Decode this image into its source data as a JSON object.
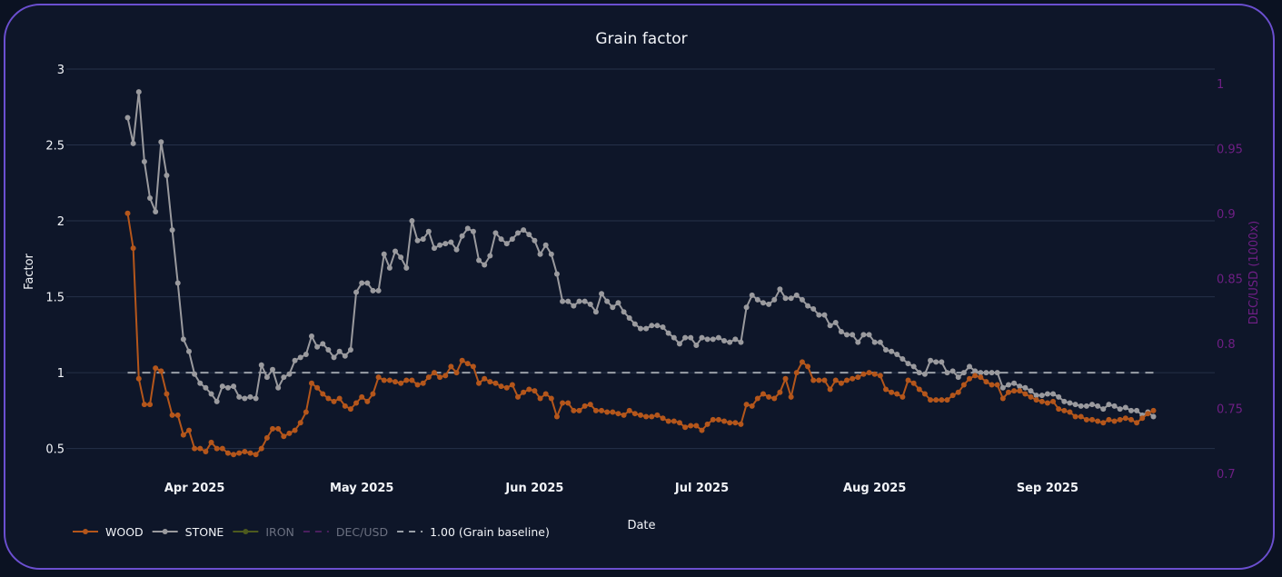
{
  "chart_data": {
    "type": "line",
    "title": "Grain factor",
    "xlabel": "Date",
    "ylabel": "Factor",
    "y2label": "DEC/USD (1000x)",
    "start_date": "2025-03-20",
    "interval": "daily",
    "xlim": [
      "2025-03-09",
      "2025-10-01"
    ],
    "ylim": [
      0.336,
      3.084
    ],
    "y2lim": [
      0.7,
      1.021
    ],
    "yticks": [
      0.5,
      1,
      1.5,
      2,
      2.5,
      3
    ],
    "ytick_labels": [
      "0.5",
      "1",
      "1.5",
      "2",
      "2.5",
      "3"
    ],
    "y2ticks": [
      0.7,
      0.75,
      0.8,
      0.85,
      0.9,
      0.95,
      1
    ],
    "y2tick_labels": [
      "0.7",
      "0.75",
      "0.8",
      "0.85",
      "0.9",
      "0.95",
      "1"
    ],
    "xticks": [
      "2025-04-01",
      "2025-05-01",
      "2025-06-01",
      "2025-07-01",
      "2025-08-01",
      "2025-09-01"
    ],
    "xtick_labels": [
      "Apr 2025",
      "May 2025",
      "Jun 2025",
      "Jul 2025",
      "Aug 2025",
      "Sep 2025"
    ],
    "grid": true,
    "legend_position": "bottom-left",
    "baseline": {
      "name": "1.00 (Grain baseline)",
      "value": 1.0,
      "color": "#9aa0a8"
    },
    "series": [
      {
        "name": "WOOD",
        "color": "#b4561b",
        "visible": true,
        "values": [
          2.05,
          1.82,
          0.96,
          0.79,
          0.79,
          1.03,
          1.01,
          0.86,
          0.72,
          0.72,
          0.59,
          0.62,
          0.5,
          0.5,
          0.48,
          0.54,
          0.5,
          0.5,
          0.47,
          0.46,
          0.47,
          0.48,
          0.47,
          0.46,
          0.5,
          0.57,
          0.63,
          0.63,
          0.58,
          0.6,
          0.62,
          0.67,
          0.74,
          0.93,
          0.9,
          0.86,
          0.83,
          0.81,
          0.83,
          0.78,
          0.76,
          0.8,
          0.84,
          0.81,
          0.86,
          0.97,
          0.95,
          0.95,
          0.94,
          0.93,
          0.95,
          0.95,
          0.92,
          0.93,
          0.97,
          1.0,
          0.97,
          0.98,
          1.04,
          1.0,
          1.08,
          1.06,
          1.04,
          0.93,
          0.96,
          0.94,
          0.93,
          0.91,
          0.9,
          0.92,
          0.84,
          0.87,
          0.89,
          0.88,
          0.83,
          0.86,
          0.83,
          0.71,
          0.8,
          0.8,
          0.75,
          0.75,
          0.78,
          0.79,
          0.75,
          0.75,
          0.74,
          0.74,
          0.73,
          0.72,
          0.75,
          0.73,
          0.72,
          0.71,
          0.71,
          0.72,
          0.7,
          0.68,
          0.68,
          0.67,
          0.64,
          0.65,
          0.65,
          0.62,
          0.66,
          0.69,
          0.69,
          0.68,
          0.67,
          0.67,
          0.66,
          0.79,
          0.78,
          0.83,
          0.86,
          0.84,
          0.83,
          0.87,
          0.96,
          0.84,
          1.0,
          1.07,
          1.04,
          0.95,
          0.95,
          0.95,
          0.89,
          0.95,
          0.93,
          0.95,
          0.96,
          0.97,
          0.99,
          1.0,
          0.99,
          0.98,
          0.89,
          0.87,
          0.86,
          0.84,
          0.95,
          0.93,
          0.89,
          0.86,
          0.82,
          0.82,
          0.82,
          0.82,
          0.85,
          0.87,
          0.92,
          0.96,
          0.98,
          0.97,
          0.94,
          0.92,
          0.92,
          0.83,
          0.87,
          0.88,
          0.88,
          0.86,
          0.84,
          0.82,
          0.81,
          0.8,
          0.81,
          0.76,
          0.75,
          0.74,
          0.71,
          0.71,
          0.69,
          0.69,
          0.68,
          0.67,
          0.69,
          0.68,
          0.69,
          0.7,
          0.69,
          0.67,
          0.7,
          0.73,
          0.75
        ]
      },
      {
        "name": "STONE",
        "color": "#9a9a9e",
        "visible": true,
        "values": [
          2.68,
          2.51,
          2.85,
          2.39,
          2.15,
          2.06,
          2.52,
          2.3,
          1.94,
          1.59,
          1.22,
          1.14,
          0.99,
          0.93,
          0.9,
          0.86,
          0.81,
          0.91,
          0.9,
          0.91,
          0.84,
          0.83,
          0.84,
          0.83,
          1.05,
          0.97,
          1.02,
          0.9,
          0.97,
          0.99,
          1.08,
          1.1,
          1.12,
          1.24,
          1.17,
          1.19,
          1.15,
          1.1,
          1.14,
          1.11,
          1.15,
          1.53,
          1.59,
          1.59,
          1.54,
          1.54,
          1.78,
          1.69,
          1.8,
          1.76,
          1.69,
          2.0,
          1.87,
          1.88,
          1.93,
          1.82,
          1.84,
          1.85,
          1.86,
          1.81,
          1.9,
          1.95,
          1.93,
          1.74,
          1.71,
          1.77,
          1.92,
          1.88,
          1.85,
          1.88,
          1.92,
          1.94,
          1.91,
          1.87,
          1.78,
          1.84,
          1.78,
          1.65,
          1.47,
          1.47,
          1.44,
          1.47,
          1.47,
          1.45,
          1.4,
          1.52,
          1.47,
          1.43,
          1.46,
          1.4,
          1.36,
          1.32,
          1.29,
          1.29,
          1.31,
          1.31,
          1.3,
          1.26,
          1.23,
          1.19,
          1.23,
          1.23,
          1.18,
          1.23,
          1.22,
          1.22,
          1.23,
          1.21,
          1.2,
          1.22,
          1.2,
          1.43,
          1.51,
          1.48,
          1.46,
          1.45,
          1.48,
          1.55,
          1.49,
          1.49,
          1.51,
          1.48,
          1.44,
          1.42,
          1.38,
          1.38,
          1.31,
          1.33,
          1.27,
          1.25,
          1.25,
          1.2,
          1.25,
          1.25,
          1.2,
          1.2,
          1.15,
          1.14,
          1.12,
          1.09,
          1.06,
          1.04,
          1.0,
          0.99,
          1.08,
          1.07,
          1.07,
          1.0,
          1.01,
          0.97,
          1.0,
          1.04,
          1.01,
          1.0,
          1.0,
          1.0,
          1.0,
          0.9,
          0.92,
          0.93,
          0.91,
          0.9,
          0.88,
          0.85,
          0.85,
          0.86,
          0.86,
          0.84,
          0.81,
          0.8,
          0.79,
          0.78,
          0.78,
          0.79,
          0.78,
          0.76,
          0.79,
          0.78,
          0.76,
          0.77,
          0.75,
          0.75,
          0.72,
          0.74,
          0.71
        ]
      },
      {
        "name": "IRON",
        "color": "#4d5a1e",
        "visible": false,
        "values": []
      },
      {
        "name": "DEC/USD",
        "color": "#4a1f5e",
        "visible": false,
        "axis": "y2",
        "values": []
      }
    ]
  }
}
